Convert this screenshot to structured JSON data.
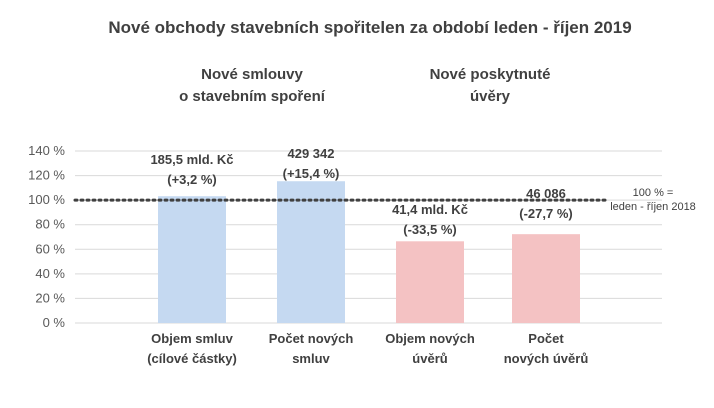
{
  "chart_data": {
    "type": "bar",
    "title": "Nové obchody stavebních spořitelen za období leden - říjen 2019",
    "groups": [
      {
        "label_lines": [
          "Nové smlouvy",
          "o stavebním spoření"
        ]
      },
      {
        "label_lines": [
          "Nové poskytnuté",
          "úvěry"
        ]
      }
    ],
    "categories": [
      [
        "Objem smluv",
        "(cílové částky)"
      ],
      [
        "Počet  nových",
        "smluv"
      ],
      [
        "Objem nových",
        "úvěrů"
      ],
      [
        "Počet",
        "nových úvěrů"
      ]
    ],
    "values": [
      103.2,
      115.4,
      66.5,
      72.3
    ],
    "data_labels": [
      [
        "185,5 mld. Kč",
        "(+3,2 %)"
      ],
      [
        "429 342",
        "(+15,4 %)"
      ],
      [
        "41,4 mld. Kč",
        "(-33,5 %)"
      ],
      [
        "46 086",
        "(-27,7 %)"
      ]
    ],
    "bar_colors": [
      "#c5d9f1",
      "#c5d9f1",
      "#f4c2c3",
      "#f4c2c3"
    ],
    "ylim": [
      0,
      140
    ],
    "yticks": [
      0,
      20,
      40,
      60,
      80,
      100,
      120,
      140
    ],
    "ytick_labels": [
      "0 %",
      "20 %",
      "40 %",
      "60 %",
      "80 %",
      "100 %",
      "120 %",
      "140 %"
    ],
    "reference_line": {
      "value": 100,
      "label_lines": [
        "100 % =",
        "leden - říjen 2018"
      ],
      "style": "dotted",
      "color": "#404040"
    },
    "grid": true,
    "legend": "none"
  }
}
